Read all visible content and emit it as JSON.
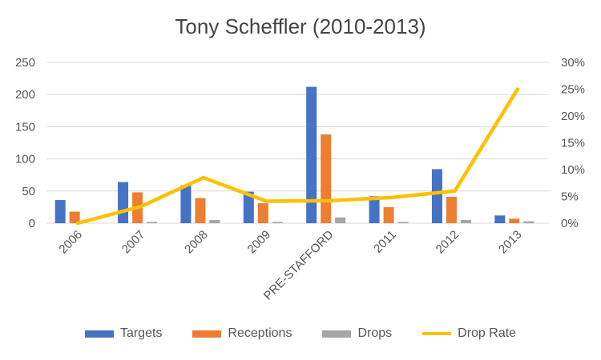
{
  "chart_data": {
    "type": "bar",
    "title": "Tony Scheffler (2010-2013)",
    "categories": [
      "2006",
      "2007",
      "2008",
      "2009",
      "PRE-STAFFORD",
      "2011",
      "2012",
      "2013"
    ],
    "series": [
      {
        "name": "Targets",
        "axis": "left",
        "type": "bar",
        "color": "#4472C4",
        "values": [
          36,
          64,
          59,
          49,
          212,
          42,
          84,
          12
        ]
      },
      {
        "name": "Receptions",
        "axis": "left",
        "type": "bar",
        "color": "#ED7D31",
        "values": [
          18,
          48,
          39,
          31,
          138,
          25,
          41,
          7
        ]
      },
      {
        "name": "Drops",
        "axis": "left",
        "type": "bar",
        "color": "#A5A5A5",
        "values": [
          0,
          2,
          5,
          2,
          9,
          2,
          5,
          3
        ]
      },
      {
        "name": "Drop Rate",
        "axis": "right",
        "type": "line",
        "color": "#FFC000",
        "values": [
          0.0,
          0.031,
          0.085,
          0.041,
          0.042,
          0.048,
          0.06,
          0.25
        ]
      }
    ],
    "y_left": {
      "min": 0,
      "max": 250,
      "ticks": [
        0,
        50,
        100,
        150,
        200,
        250
      ],
      "tick_labels": [
        "0",
        "50",
        "100",
        "150",
        "200",
        "250"
      ]
    },
    "y_right": {
      "min": 0,
      "max": 0.3,
      "ticks": [
        0,
        0.05,
        0.1,
        0.15,
        0.2,
        0.25,
        0.3
      ],
      "tick_labels": [
        "0%",
        "5%",
        "10%",
        "15%",
        "20%",
        "25%",
        "30%"
      ]
    },
    "grid": true,
    "legend": "bottom"
  }
}
